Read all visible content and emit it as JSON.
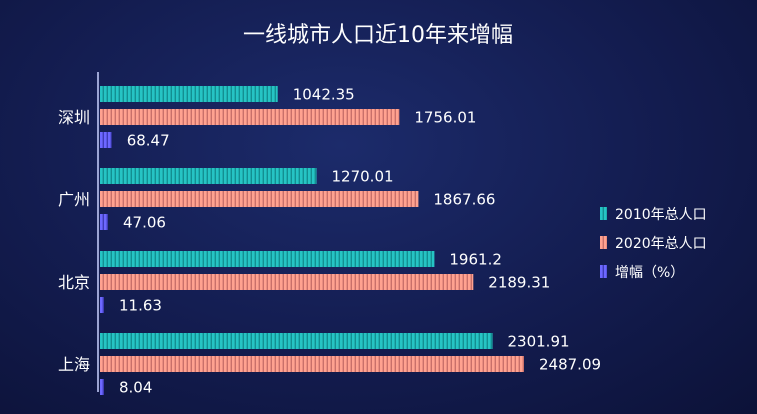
{
  "chart_data": {
    "type": "bar",
    "orientation": "horizontal",
    "title": "一线城市人口近10年来增幅",
    "categories": [
      "深圳",
      "广州",
      "北京",
      "上海"
    ],
    "series": [
      {
        "name": "2010年总人口",
        "values": [
          1042.35,
          1270.01,
          1961.2,
          2301.91
        ],
        "color": "#1fb8b8"
      },
      {
        "name": "2020年总人口",
        "values": [
          1756.01,
          1867.66,
          2189.31,
          2487.09
        ],
        "color": "#f0907e"
      },
      {
        "name": "增幅（%）",
        "values": [
          68.47,
          47.06,
          11.63,
          8.04
        ],
        "color": "#5a55e8"
      }
    ],
    "xlim": [
      0,
      2800
    ],
    "grid": false,
    "legend": "right"
  }
}
